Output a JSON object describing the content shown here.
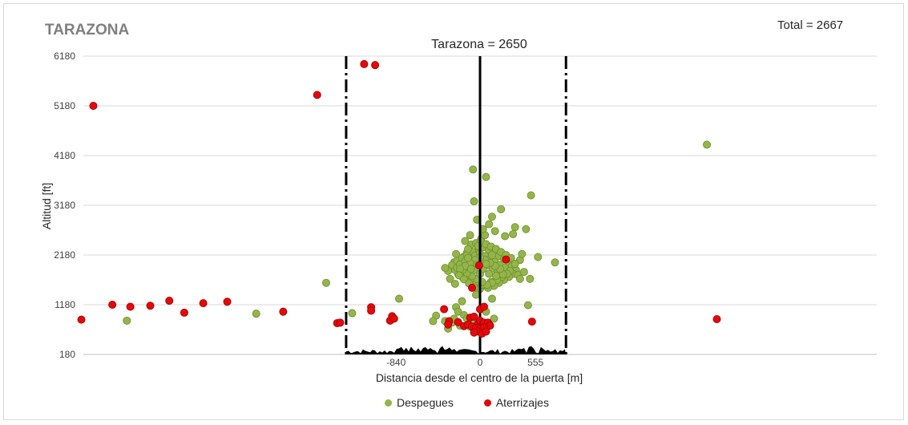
{
  "header": {
    "site_label": "TARAZONA",
    "total_label": "Total = 2667"
  },
  "colors": {
    "despegues": "#93b54a",
    "despegues_edge": "#6f8f30",
    "aterrizajes": "#e3090b",
    "aterrizajes_edge": "#a30000",
    "grid": "#d9d9d9",
    "terrain": "#000000"
  },
  "chart_data": {
    "type": "scatter",
    "title": "Tarazona = 2650",
    "xlabel": "Distancia desde el centro de la puerta [m]",
    "ylabel": "Altitud [ft]",
    "xlim": [
      -3970,
      3970
    ],
    "ylim": [
      180,
      6180
    ],
    "xticks": [
      -840,
      0,
      555
    ],
    "xtick_labels": [
      "-840",
      "0",
      "555"
    ],
    "yticks": [
      180,
      1180,
      2180,
      3180,
      4180,
      5180,
      6180
    ],
    "ytick_labels": [
      "180",
      "1180",
      "2180",
      "3180",
      "4180",
      "5180",
      "6180"
    ],
    "grid": "horizontal",
    "gate_center": 0,
    "gate_limits": [
      -1340,
      860
    ],
    "legend_position": "bottom",
    "series": [
      {
        "name": "Despegues",
        "points": [
          [
            -3535,
            860
          ],
          [
            -2240,
            1000
          ],
          [
            -1540,
            1620
          ],
          [
            -1280,
            1010
          ],
          [
            -810,
            1300
          ],
          [
            -190,
            1900
          ],
          [
            -260,
            2030
          ],
          [
            -90,
            2390
          ],
          [
            -130,
            2230
          ],
          [
            -160,
            2150
          ],
          [
            -40,
            2420
          ],
          [
            10,
            2500
          ],
          [
            50,
            2580
          ],
          [
            90,
            2800
          ],
          [
            150,
            2660
          ],
          [
            210,
            3100
          ],
          [
            250,
            2560
          ],
          [
            350,
            2740
          ],
          [
            330,
            2600
          ],
          [
            400,
            2080
          ],
          [
            300,
            2000
          ],
          [
            270,
            1920
          ],
          [
            220,
            1780
          ],
          [
            170,
            1700
          ],
          [
            110,
            1640
          ],
          [
            60,
            1560
          ],
          [
            0,
            1500
          ],
          [
            -60,
            1560
          ],
          [
            -110,
            1640
          ],
          [
            -170,
            1720
          ],
          [
            -220,
            1800
          ],
          [
            -250,
            1880
          ],
          [
            -280,
            1980
          ],
          [
            -230,
            2060
          ],
          [
            -180,
            2120
          ],
          [
            -130,
            2180
          ],
          [
            -70,
            2240
          ],
          [
            -10,
            2300
          ],
          [
            40,
            2340
          ],
          [
            90,
            2280
          ],
          [
            140,
            2220
          ],
          [
            190,
            2160
          ],
          [
            240,
            2100
          ],
          [
            280,
            2040
          ],
          [
            320,
            1960
          ],
          [
            360,
            1880
          ],
          [
            330,
            1800
          ],
          [
            290,
            1740
          ],
          [
            240,
            1680
          ],
          [
            190,
            1620
          ],
          [
            140,
            1560
          ],
          [
            80,
            1520
          ],
          [
            20,
            1580
          ],
          [
            -40,
            1640
          ],
          [
            -90,
            1700
          ],
          [
            -140,
            1760
          ],
          [
            -190,
            1840
          ],
          [
            -230,
            1920
          ],
          [
            -200,
            1990
          ],
          [
            -150,
            2050
          ],
          [
            -100,
            2110
          ],
          [
            -50,
            2170
          ],
          [
            0,
            2210
          ],
          [
            50,
            2160
          ],
          [
            100,
            2100
          ],
          [
            150,
            2040
          ],
          [
            200,
            1980
          ],
          [
            250,
            1920
          ],
          [
            300,
            1860
          ],
          [
            270,
            1800
          ],
          [
            220,
            1740
          ],
          [
            170,
            1680
          ],
          [
            120,
            1620
          ],
          [
            70,
            1580
          ],
          [
            20,
            1640
          ],
          [
            -30,
            1700
          ],
          [
            -80,
            1760
          ],
          [
            -130,
            1820
          ],
          [
            -170,
            1890
          ],
          [
            -120,
            1950
          ],
          [
            -70,
            2010
          ],
          [
            -20,
            2070
          ],
          [
            30,
            2030
          ],
          [
            80,
            1970
          ],
          [
            130,
            1910
          ],
          [
            180,
            1850
          ],
          [
            230,
            1790
          ],
          [
            200,
            1900
          ],
          [
            150,
            1960
          ],
          [
            100,
            2020
          ],
          [
            50,
            2080
          ],
          [
            0,
            2130
          ],
          [
            -50,
            2080
          ],
          [
            -100,
            2020
          ],
          [
            -150,
            1960
          ],
          [
            -200,
            1900
          ],
          [
            -210,
            1770
          ],
          [
            -160,
            1690
          ],
          [
            -110,
            1610
          ],
          [
            -60,
            1530
          ],
          [
            10,
            2450
          ],
          [
            60,
            2400
          ],
          [
            -20,
            2360
          ],
          [
            110,
            2350
          ],
          [
            -120,
            2300
          ],
          [
            160,
            2300
          ],
          [
            210,
            2240
          ],
          [
            260,
            2180
          ],
          [
            -240,
            2200
          ],
          [
            310,
            2120
          ],
          [
            350,
            2000
          ],
          [
            380,
            1780
          ],
          [
            400,
            1700
          ],
          [
            -300,
            1700
          ],
          [
            -320,
            1860
          ],
          [
            0,
            1800
          ],
          [
            30,
            1900
          ],
          [
            -30,
            1980
          ],
          [
            60,
            2000
          ],
          [
            -60,
            1880
          ],
          [
            90,
            1800
          ],
          [
            -90,
            1900
          ],
          [
            120,
            2180
          ],
          [
            -120,
            2120
          ],
          [
            160,
            1760
          ],
          [
            -250,
            1600
          ],
          [
            420,
            2200
          ],
          [
            440,
            1840
          ],
          [
            -350,
            1920
          ],
          [
            500,
            1700
          ],
          [
            -150,
            2460
          ],
          [
            -100,
            2580
          ],
          [
            -30,
            2890
          ],
          [
            30,
            2700
          ],
          [
            120,
            2950
          ],
          [
            -60,
            3260
          ],
          [
            -70,
            3900
          ],
          [
            60,
            3750
          ],
          [
            510,
            3380
          ],
          [
            460,
            2700
          ],
          [
            580,
            2140
          ],
          [
            750,
            2030
          ],
          [
            480,
            1170
          ],
          [
            -40,
            1380
          ],
          [
            120,
            1300
          ],
          [
            -240,
            1130
          ],
          [
            -220,
            1040
          ],
          [
            -160,
            970
          ],
          [
            -110,
            880
          ],
          [
            -50,
            820
          ],
          [
            -200,
            760
          ],
          [
            -100,
            740
          ],
          [
            -60,
            680
          ],
          [
            40,
            690
          ],
          [
            100,
            760
          ],
          [
            -280,
            820
          ],
          [
            -320,
            700
          ],
          [
            -350,
            850
          ],
          [
            -440,
            960
          ],
          [
            -470,
            850
          ],
          [
            -180,
            1250
          ],
          [
            -130,
            900
          ],
          [
            60,
            1040
          ],
          [
            140,
            900
          ],
          [
            -260,
            900
          ],
          [
            2270,
            4400
          ]
        ]
      },
      {
        "name": "Aterrizajes",
        "points": [
          [
            -3990,
            880
          ],
          [
            -3870,
            5180
          ],
          [
            -3680,
            1180
          ],
          [
            -3500,
            1140
          ],
          [
            -3300,
            1160
          ],
          [
            -3110,
            1260
          ],
          [
            -2960,
            1020
          ],
          [
            -2770,
            1210
          ],
          [
            -2530,
            1240
          ],
          [
            -1970,
            1040
          ],
          [
            -1630,
            5400
          ],
          [
            -1430,
            810
          ],
          [
            -1400,
            820
          ],
          [
            -1160,
            6020
          ],
          [
            -1050,
            6000
          ],
          [
            -1090,
            1130
          ],
          [
            -1090,
            1060
          ],
          [
            -900,
            860
          ],
          [
            -880,
            950
          ],
          [
            -860,
            900
          ],
          [
            -360,
            1090
          ],
          [
            -310,
            850
          ],
          [
            -320,
            780
          ],
          [
            -220,
            830
          ],
          [
            -160,
            750
          ],
          [
            -120,
            780
          ],
          [
            -100,
            920
          ],
          [
            -60,
            940
          ],
          [
            -20,
            800
          ],
          [
            0,
            860
          ],
          [
            20,
            760
          ],
          [
            40,
            820
          ],
          [
            60,
            700
          ],
          [
            80,
            820
          ],
          [
            100,
            760
          ],
          [
            -80,
            740
          ],
          [
            -40,
            710
          ],
          [
            0,
            700
          ],
          [
            40,
            720
          ],
          [
            -20,
            640
          ],
          [
            20,
            600
          ],
          [
            -60,
            620
          ],
          [
            60,
            640
          ],
          [
            0,
            1090
          ],
          [
            40,
            1140
          ],
          [
            -80,
            1520
          ],
          [
            -10,
            1970
          ],
          [
            260,
            2090
          ],
          [
            520,
            840
          ],
          [
            2370,
            890
          ]
        ]
      }
    ]
  },
  "legend": {
    "items": [
      {
        "label": "Despegues"
      },
      {
        "label": "Aterrizajes"
      }
    ]
  }
}
